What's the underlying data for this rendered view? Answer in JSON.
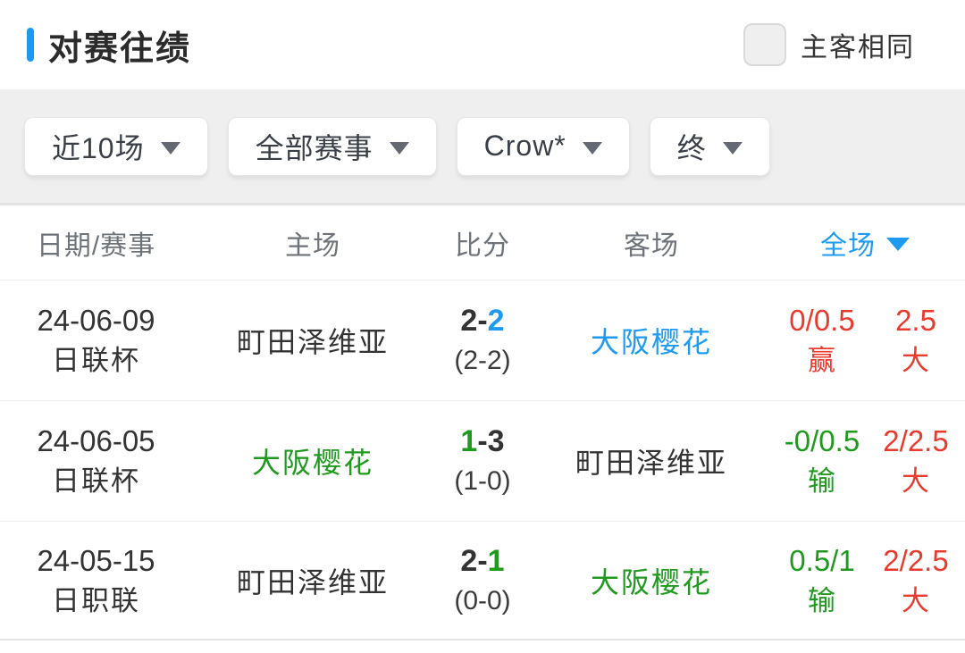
{
  "colors": {
    "blue": "#1e9bf0",
    "green": "#1f9a1f",
    "red": "#e93a2e",
    "dark": "#333333"
  },
  "header_bar": {
    "title": "对赛往绩",
    "checkbox_label": "主客相同"
  },
  "filters": {
    "items": [
      {
        "label": "近10场"
      },
      {
        "label": "全部赛事"
      },
      {
        "label": "Crow*"
      },
      {
        "label": "终"
      }
    ]
  },
  "table": {
    "columns": {
      "date": "日期/赛事",
      "home": "主场",
      "score": "比分",
      "away": "客场",
      "full": "全场"
    },
    "rows": [
      {
        "date": "24-06-09",
        "competition": "日联杯",
        "home_team": "町田泽维亚",
        "home_color": "dark",
        "score_home": "2",
        "score_dash": "-",
        "score_away": "2",
        "score_home_color": "dark",
        "score_away_color": "blue",
        "half_score": "(2-2)",
        "away_team": "大阪樱花",
        "away_color": "blue",
        "handicap_value": "0/0.5",
        "handicap_result": "赢",
        "handicap_color": "red",
        "ou_value": "2.5",
        "ou_result": "大",
        "ou_color": "red"
      },
      {
        "date": "24-06-05",
        "competition": "日联杯",
        "home_team": "大阪樱花",
        "home_color": "green",
        "score_home": "1",
        "score_dash": "-",
        "score_away": "3",
        "score_home_color": "green",
        "score_away_color": "dark",
        "half_score": "(1-0)",
        "away_team": "町田泽维亚",
        "away_color": "dark",
        "handicap_value": "-0/0.5",
        "handicap_result": "输",
        "handicap_color": "green",
        "ou_value": "2/2.5",
        "ou_result": "大",
        "ou_color": "red"
      },
      {
        "date": "24-05-15",
        "competition": "日职联",
        "home_team": "町田泽维亚",
        "home_color": "dark",
        "score_home": "2",
        "score_dash": "-",
        "score_away": "1",
        "score_home_color": "dark",
        "score_away_color": "green",
        "half_score": "(0-0)",
        "away_team": "大阪樱花",
        "away_color": "green",
        "handicap_value": "0.5/1",
        "handicap_result": "输",
        "handicap_color": "green",
        "ou_value": "2/2.5",
        "ou_result": "大",
        "ou_color": "red"
      }
    ]
  }
}
